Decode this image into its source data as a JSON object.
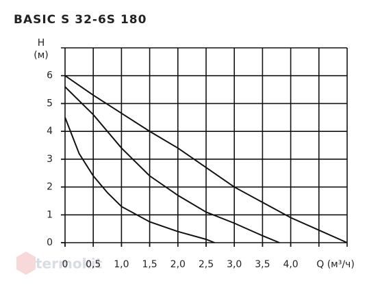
{
  "chart_data": {
    "type": "line",
    "title": "BASIC S 32-6S 180",
    "y_label": "H",
    "y_unit": "(м)",
    "x_label": "Q (м³/ч)",
    "watermark": "termokit",
    "xlim": [
      0,
      5
    ],
    "ylim": [
      0,
      7
    ],
    "xticks": [
      0,
      {
        "value": 0.5,
        "label": "0,5"
      },
      {
        "value": 1,
        "label": "1,0"
      },
      {
        "value": 1.5,
        "label": "1,5"
      },
      {
        "value": 2,
        "label": "2,0"
      },
      {
        "value": 2.5,
        "label": "2,5"
      },
      {
        "value": 3,
        "label": "3,0"
      },
      {
        "value": 3.5,
        "label": "3,5"
      },
      {
        "value": 4,
        "label": "4,0"
      }
    ],
    "yticks": [
      0,
      1,
      2,
      3,
      4,
      5,
      6
    ],
    "xgrid": [
      0,
      0.5,
      1,
      1.5,
      2,
      2.5,
      3,
      3.5,
      4,
      4.5,
      5
    ],
    "ygrid": [
      0,
      1,
      2,
      3,
      4,
      5,
      6,
      7
    ],
    "grid": true,
    "series": [
      {
        "color": "#111111",
        "x": [
          0,
          0.5,
          1,
          1.5,
          2,
          2.5,
          3,
          3.5,
          4,
          4.5,
          5
        ],
        "values": [
          6.0,
          5.3,
          4.65,
          4.0,
          3.4,
          2.7,
          2.0,
          1.45,
          0.9,
          0.45,
          0
        ]
      },
      {
        "color": "#111111",
        "x": [
          0,
          0.5,
          1,
          1.5,
          2,
          2.5,
          3,
          3.5,
          3.8
        ],
        "values": [
          5.6,
          4.6,
          3.4,
          2.4,
          1.7,
          1.1,
          0.7,
          0.25,
          0
        ]
      },
      {
        "color": "#111111",
        "x": [
          0,
          0.25,
          0.5,
          0.75,
          1,
          1.5,
          2,
          2.5,
          2.65
        ],
        "values": [
          4.5,
          3.2,
          2.4,
          1.8,
          1.3,
          0.75,
          0.4,
          0.12,
          0
        ]
      }
    ]
  }
}
